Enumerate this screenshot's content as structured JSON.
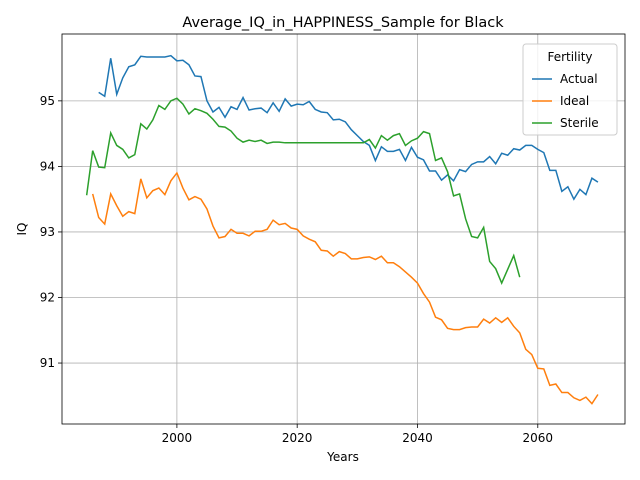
{
  "chart_data": {
    "type": "line",
    "title": "Average_IQ_in_HAPPINESS_Sample for Black",
    "x_label": "Years",
    "y_label": "IQ",
    "legend_title": "Fertility",
    "legend": "upper right",
    "grid": true,
    "xlim": [
      1980.9,
      2074.5
    ],
    "ylim": [
      90.07,
      96.02
    ],
    "xticks": [
      2000,
      2020,
      2040,
      2060
    ],
    "yticks": [
      91,
      92,
      93,
      94,
      95
    ],
    "x": [
      1985,
      1986,
      1987,
      1988,
      1989,
      1990,
      1991,
      1992,
      1993,
      1994,
      1995,
      1996,
      1997,
      1998,
      1999,
      2000,
      2001,
      2002,
      2003,
      2004,
      2005,
      2006,
      2007,
      2008,
      2009,
      2010,
      2011,
      2012,
      2013,
      2014,
      2015,
      2016,
      2017,
      2018,
      2019,
      2020,
      2021,
      2022,
      2023,
      2024,
      2025,
      2026,
      2027,
      2028,
      2029,
      2030,
      2031,
      2032,
      2033,
      2034,
      2035,
      2036,
      2037,
      2038,
      2039,
      2040,
      2041,
      2042,
      2043,
      2044,
      2045,
      2046,
      2047,
      2048,
      2049,
      2050,
      2051,
      2052,
      2053,
      2054,
      2055,
      2056,
      2057,
      2058,
      2059,
      2060,
      2061,
      2062,
      2063,
      2064,
      2065,
      2066,
      2067,
      2068,
      2069,
      2070
    ],
    "series": [
      {
        "name": "Actual",
        "color": "#1f77b4",
        "values": [
          null,
          null,
          95.13,
          95.07,
          95.65,
          95.1,
          95.35,
          95.52,
          95.55,
          95.68,
          95.67,
          95.67,
          95.67,
          95.67,
          95.69,
          95.61,
          95.62,
          95.55,
          95.38,
          95.37,
          95.0,
          94.83,
          94.9,
          94.75,
          94.91,
          94.87,
          95.05,
          94.86,
          94.88,
          94.89,
          94.82,
          94.97,
          94.84,
          95.03,
          94.92,
          94.95,
          94.94,
          94.99,
          94.87,
          94.83,
          94.82,
          94.71,
          94.72,
          94.68,
          94.56,
          94.47,
          94.38,
          94.32,
          94.09,
          94.3,
          94.23,
          94.23,
          94.26,
          94.09,
          94.29,
          94.14,
          94.1,
          93.93,
          93.93,
          93.79,
          93.87,
          93.78,
          93.95,
          93.92,
          94.03,
          94.07,
          94.07,
          94.15,
          94.04,
          94.2,
          94.17,
          94.27,
          94.25,
          94.32,
          94.32,
          94.26,
          94.21,
          93.94,
          93.94,
          93.62,
          93.69,
          93.5,
          93.65,
          93.57,
          93.82,
          93.76
        ]
      },
      {
        "name": "Ideal",
        "color": "#ff7f0e",
        "values": [
          null,
          93.58,
          93.22,
          93.12,
          93.58,
          93.4,
          93.24,
          93.31,
          93.28,
          93.81,
          93.52,
          93.63,
          93.67,
          93.57,
          93.78,
          93.9,
          93.67,
          93.49,
          93.54,
          93.5,
          93.35,
          93.09,
          92.91,
          92.93,
          93.04,
          92.98,
          92.98,
          92.94,
          93.01,
          93.01,
          93.04,
          93.18,
          93.11,
          93.13,
          93.06,
          93.04,
          92.94,
          92.89,
          92.85,
          92.72,
          92.71,
          92.63,
          92.7,
          92.67,
          92.59,
          92.59,
          92.61,
          92.62,
          92.58,
          92.63,
          92.53,
          92.53,
          92.47,
          92.39,
          92.31,
          92.22,
          92.06,
          91.93,
          91.7,
          91.66,
          91.53,
          91.51,
          91.51,
          91.54,
          91.55,
          91.55,
          91.67,
          91.61,
          91.69,
          91.62,
          91.69,
          91.56,
          91.46,
          91.21,
          91.13,
          90.92,
          90.91,
          90.66,
          90.68,
          90.55,
          90.55,
          90.47,
          90.43,
          90.48,
          90.38,
          90.52
        ]
      },
      {
        "name": "Sterile",
        "color": "#2ca02c",
        "values": [
          93.56,
          94.24,
          93.99,
          93.98,
          94.51,
          94.32,
          94.26,
          94.13,
          94.18,
          94.65,
          94.57,
          94.71,
          94.93,
          94.87,
          95.0,
          95.04,
          94.95,
          94.8,
          94.88,
          94.85,
          94.81,
          94.72,
          94.61,
          94.6,
          94.54,
          94.43,
          94.37,
          94.4,
          94.38,
          94.4,
          94.35,
          94.37,
          94.37,
          94.36,
          94.36,
          94.36,
          94.36,
          94.36,
          94.36,
          94.36,
          94.36,
          94.36,
          94.36,
          94.36,
          94.36,
          94.36,
          94.36,
          94.41,
          94.28,
          94.47,
          94.4,
          94.47,
          94.5,
          94.32,
          94.39,
          94.43,
          94.53,
          94.5,
          94.09,
          94.13,
          93.92,
          93.55,
          93.58,
          93.2,
          92.93,
          92.91,
          93.07,
          92.55,
          92.44,
          92.22,
          92.43,
          92.64,
          92.31,
          null,
          null,
          null,
          null,
          null,
          null,
          null,
          null,
          null,
          null,
          null,
          null,
          null
        ]
      }
    ]
  }
}
